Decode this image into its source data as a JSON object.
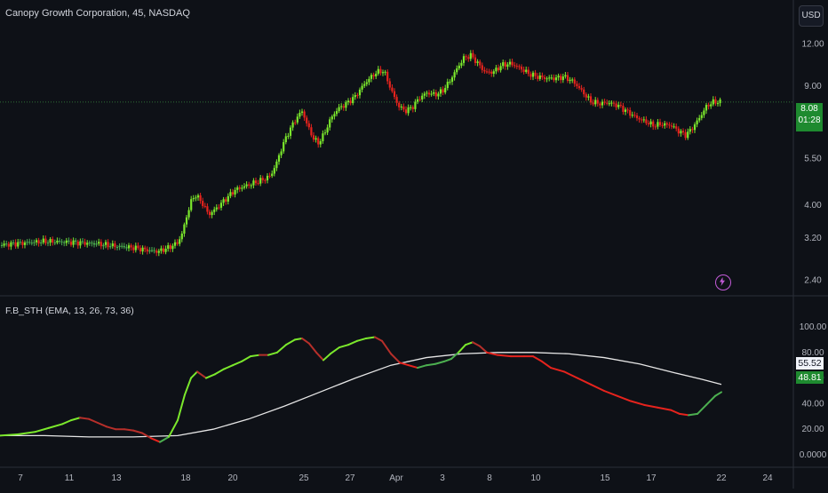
{
  "header": {
    "title": "Canopy Growth Corporation, 45, NASDAQ",
    "currency_label": "USD"
  },
  "indicator": {
    "title": "F.B_STH (EMA, 13, 26, 73, 36)"
  },
  "price_badge": {
    "price": "8.08",
    "countdown": "01:28"
  },
  "indicator_badges": {
    "white_line": "55.52",
    "green_line": "48.81"
  },
  "colors": {
    "bg": "#0e1117",
    "up": "#7be82c",
    "down": "#e6231d",
    "neutral": "#4caf50",
    "signal": "#e6e6e6",
    "axis_text": "#b2b5be",
    "grid_line": "#2a2e39"
  },
  "icon": "lightning-bolt-icon",
  "chart_data": [
    {
      "type": "candlestick",
      "title": "Canopy Growth Corporation, 45, NASDAQ",
      "yscale": "log",
      "y_ticks": [
        "12.00",
        "9.00",
        "7.00",
        "5.50",
        "4.00",
        "3.20",
        "2.40"
      ],
      "ylim": [
        2.2,
        13.5
      ],
      "current_price": 8.08,
      "series_path": [
        [
          0,
          3.05
        ],
        [
          15,
          3.08
        ],
        [
          30,
          3.1
        ],
        [
          50,
          3.13
        ],
        [
          70,
          3.12
        ],
        [
          90,
          3.1
        ],
        [
          110,
          3.08
        ],
        [
          130,
          3.03
        ],
        [
          150,
          3.0
        ],
        [
          165,
          2.95
        ],
        [
          178,
          2.92
        ],
        [
          190,
          3.0
        ],
        [
          200,
          3.1
        ],
        [
          205,
          3.3
        ],
        [
          210,
          3.7
        ],
        [
          215,
          4.1
        ],
        [
          220,
          4.3
        ],
        [
          228,
          4.05
        ],
        [
          235,
          3.75
        ],
        [
          245,
          3.95
        ],
        [
          255,
          4.2
        ],
        [
          265,
          4.45
        ],
        [
          275,
          4.55
        ],
        [
          285,
          4.65
        ],
        [
          295,
          4.75
        ],
        [
          305,
          4.9
        ],
        [
          312,
          5.4
        ],
        [
          318,
          6.0
        ],
        [
          325,
          6.6
        ],
        [
          333,
          7.2
        ],
        [
          340,
          7.6
        ],
        [
          346,
          6.9
        ],
        [
          352,
          6.35
        ],
        [
          358,
          6.1
        ],
        [
          365,
          6.5
        ],
        [
          372,
          7.2
        ],
        [
          380,
          7.7
        ],
        [
          390,
          8.0
        ],
        [
          400,
          8.4
        ],
        [
          408,
          9.0
        ],
        [
          416,
          9.5
        ],
        [
          424,
          9.9
        ],
        [
          432,
          10.0
        ],
        [
          440,
          8.8
        ],
        [
          448,
          7.9
        ],
        [
          456,
          7.6
        ],
        [
          464,
          7.8
        ],
        [
          472,
          8.3
        ],
        [
          480,
          8.6
        ],
        [
          490,
          8.5
        ],
        [
          498,
          8.7
        ],
        [
          506,
          9.3
        ],
        [
          514,
          10.1
        ],
        [
          522,
          10.9
        ],
        [
          530,
          11.1
        ],
        [
          538,
          10.5
        ],
        [
          546,
          9.9
        ],
        [
          555,
          9.9
        ],
        [
          565,
          10.4
        ],
        [
          575,
          10.5
        ],
        [
          585,
          10.2
        ],
        [
          595,
          9.8
        ],
        [
          605,
          9.6
        ],
        [
          615,
          9.5
        ],
        [
          625,
          9.5
        ],
        [
          635,
          9.6
        ],
        [
          645,
          9.3
        ],
        [
          655,
          8.7
        ],
        [
          665,
          8.1
        ],
        [
          675,
          8.0
        ],
        [
          685,
          8.05
        ],
        [
          695,
          7.9
        ],
        [
          705,
          7.6
        ],
        [
          715,
          7.3
        ],
        [
          725,
          7.1
        ],
        [
          735,
          6.9
        ],
        [
          745,
          6.95
        ],
        [
          755,
          6.9
        ],
        [
          765,
          6.6
        ],
        [
          772,
          6.45
        ],
        [
          780,
          6.8
        ],
        [
          788,
          7.3
        ],
        [
          796,
          7.9
        ],
        [
          804,
          8.1
        ],
        [
          812,
          8.08
        ]
      ]
    },
    {
      "type": "line",
      "title": "F.B_STH (EMA, 13, 26, 73, 36)",
      "y_ticks": [
        "100.00",
        "80.00",
        "60.00",
        "40.00",
        "20.00",
        "0.0000"
      ],
      "ylim": [
        0,
        100
      ],
      "x_tick_labels": [
        "7",
        "11",
        "13",
        "18",
        "20",
        "25",
        "27",
        "Apr",
        "3",
        "8",
        "10",
        "15",
        "17",
        "22",
        "24"
      ],
      "series": [
        {
          "role": "fast",
          "values": [
            [
              0,
              15
            ],
            [
              20,
              16
            ],
            [
              40,
              18
            ],
            [
              55,
              21
            ],
            [
              70,
              24
            ],
            [
              80,
              27
            ],
            [
              90,
              29
            ],
            [
              100,
              28
            ],
            [
              110,
              25
            ],
            [
              120,
              22
            ],
            [
              130,
              20
            ],
            [
              140,
              20
            ],
            [
              150,
              19
            ],
            [
              160,
              17
            ],
            [
              170,
              13
            ],
            [
              180,
              10
            ],
            [
              190,
              14
            ],
            [
              200,
              27
            ],
            [
              208,
              47
            ],
            [
              215,
              60
            ],
            [
              222,
              65
            ],
            [
              232,
              60
            ],
            [
              242,
              63
            ],
            [
              252,
              67
            ],
            [
              262,
              70
            ],
            [
              272,
              73
            ],
            [
              282,
              77
            ],
            [
              292,
              78
            ],
            [
              302,
              78
            ],
            [
              312,
              80
            ],
            [
              322,
              86
            ],
            [
              332,
              90
            ],
            [
              340,
              91
            ],
            [
              348,
              87
            ],
            [
              356,
              80
            ],
            [
              364,
              74
            ],
            [
              372,
              79
            ],
            [
              382,
              84
            ],
            [
              392,
              86
            ],
            [
              402,
              89
            ],
            [
              412,
              91
            ],
            [
              422,
              92
            ],
            [
              430,
              89
            ],
            [
              440,
              79
            ],
            [
              450,
              72
            ],
            [
              460,
              70
            ],
            [
              470,
              68
            ],
            [
              480,
              70
            ],
            [
              490,
              71
            ],
            [
              500,
              73
            ],
            [
              508,
              75
            ],
            [
              516,
              80
            ],
            [
              524,
              86
            ],
            [
              532,
              88
            ],
            [
              540,
              85
            ],
            [
              548,
              80
            ],
            [
              560,
              78
            ],
            [
              575,
              77
            ],
            [
              590,
              77
            ],
            [
              600,
              77
            ],
            [
              610,
              73
            ],
            [
              620,
              68
            ],
            [
              635,
              65
            ],
            [
              650,
              60
            ],
            [
              665,
              55
            ],
            [
              680,
              50
            ],
            [
              695,
              46
            ],
            [
              710,
              42
            ],
            [
              725,
              39
            ],
            [
              740,
              37
            ],
            [
              755,
              35
            ],
            [
              765,
              32
            ],
            [
              775,
              31
            ],
            [
              785,
              32
            ],
            [
              795,
              39
            ],
            [
              805,
              46
            ],
            [
              812,
              49
            ]
          ]
        },
        {
          "role": "signal",
          "values": [
            [
              0,
              15
            ],
            [
              50,
              15
            ],
            [
              100,
              14
            ],
            [
              150,
              14
            ],
            [
              200,
              15
            ],
            [
              240,
              20
            ],
            [
              280,
              28
            ],
            [
              320,
              38
            ],
            [
              360,
              49
            ],
            [
              400,
              60
            ],
            [
              440,
              70
            ],
            [
              480,
              76
            ],
            [
              520,
              79
            ],
            [
              560,
              80
            ],
            [
              600,
              80
            ],
            [
              640,
              79
            ],
            [
              680,
              76
            ],
            [
              720,
              71
            ],
            [
              760,
              64
            ],
            [
              790,
              59
            ],
            [
              812,
              55
            ]
          ]
        }
      ]
    }
  ]
}
